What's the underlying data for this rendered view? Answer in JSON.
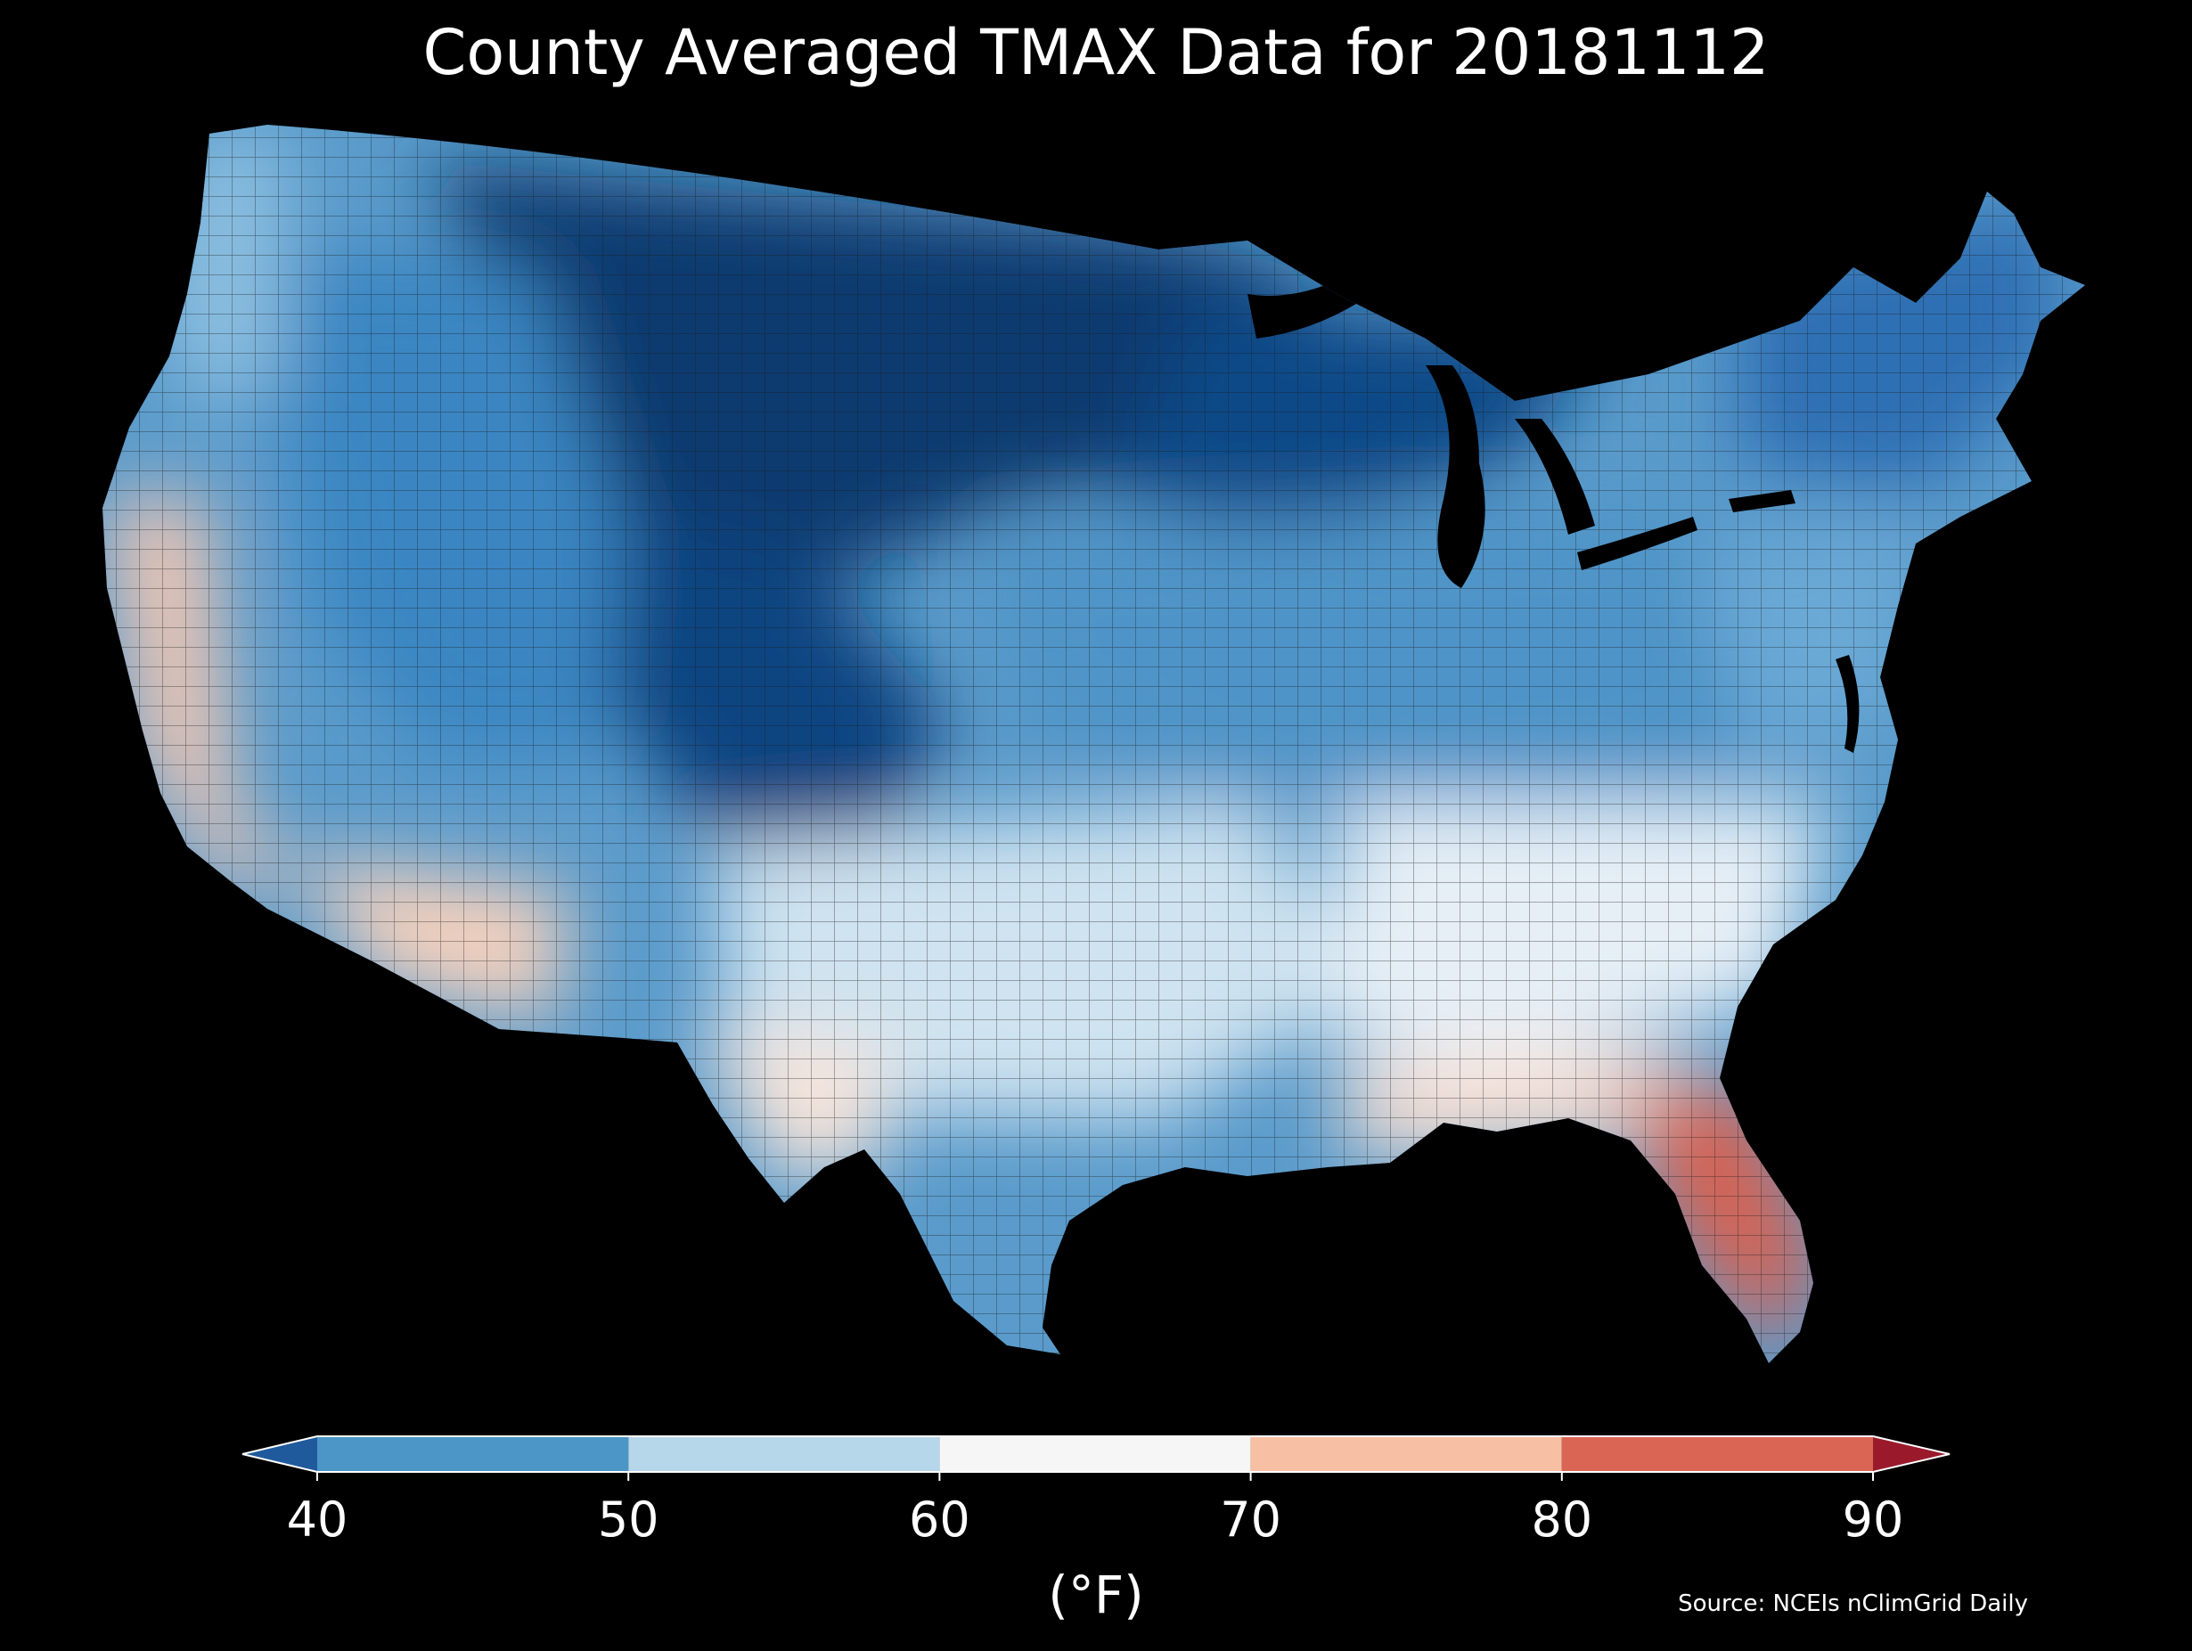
{
  "title": "County Averaged TMAX Data for 20181112",
  "colorbar": {
    "unit": "(°F)",
    "ticks": [
      "40",
      "50",
      "60",
      "70",
      "80",
      "90"
    ],
    "bins": [
      {
        "range": [
          30,
          40
        ],
        "color": "#1f5a9c"
      },
      {
        "range": [
          40,
          50
        ],
        "color": "#4b96c7"
      },
      {
        "range": [
          50,
          60
        ],
        "color": "#b6d6ea"
      },
      {
        "range": [
          60,
          70
        ],
        "color": "#f6f6f6"
      },
      {
        "range": [
          70,
          80
        ],
        "color": "#f7bfa4"
      },
      {
        "range": [
          80,
          90
        ],
        "color": "#da6555"
      },
      {
        "range": [
          90,
          100
        ],
        "color": "#9a1a2c"
      }
    ],
    "extend": "both"
  },
  "source": "Source: NCEIs nClimGrid Daily",
  "map": {
    "region": "Contiguous United States counties",
    "background": "#000000",
    "regions": [
      {
        "name": "northern-plains",
        "color": "#0b3a70"
      },
      {
        "name": "rockies",
        "color": "#0d4581"
      },
      {
        "name": "great-lakes",
        "color": "#0e4a87"
      },
      {
        "name": "northeast",
        "color": "#2e6fb4"
      },
      {
        "name": "great-basin",
        "color": "#3a86c2"
      },
      {
        "name": "midwest",
        "color": "#4f94c8"
      },
      {
        "name": "mid-atlantic",
        "color": "#6aa9d6"
      },
      {
        "name": "pacific-northwest",
        "color": "#8cbfe0"
      },
      {
        "name": "south-central",
        "color": "#cfe3f0"
      },
      {
        "name": "southeast",
        "color": "#e6eff6"
      },
      {
        "name": "california-coast",
        "color": "#f6c8b2"
      },
      {
        "name": "desert-southwest",
        "color": "#f7d2bd"
      },
      {
        "name": "south-texas",
        "color": "#f8e5da"
      },
      {
        "name": "gulf-coast",
        "color": "#fbe0d2"
      },
      {
        "name": "florida",
        "color": "#d96150"
      }
    ]
  }
}
